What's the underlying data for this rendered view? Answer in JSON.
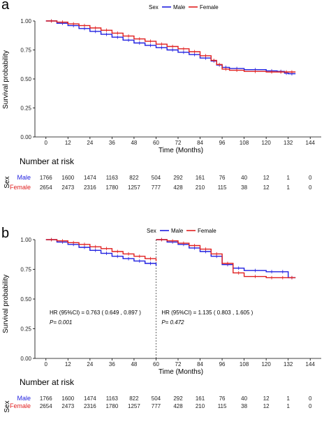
{
  "panels": [
    {
      "label": "a",
      "legend": {
        "title": "Sex",
        "items": [
          "Male",
          "Female"
        ]
      },
      "risk_title": "Number at risk",
      "risk_group_title": "Sex",
      "risk_rows": [
        {
          "name": "Male",
          "counts": [
            "1766",
            "1600",
            "1474",
            "1163",
            "822",
            "504",
            "292",
            "161",
            "76",
            "40",
            "12",
            "1",
            "0"
          ]
        },
        {
          "name": "Female",
          "counts": [
            "2654",
            "2473",
            "2316",
            "1780",
            "1257",
            "777",
            "428",
            "210",
            "115",
            "38",
            "12",
            "1",
            "0"
          ]
        }
      ],
      "annotations": []
    },
    {
      "label": "b",
      "legend": {
        "title": "Sex",
        "items": [
          "Male",
          "Female"
        ]
      },
      "risk_title": "Number at risk",
      "risk_group_title": "Sex",
      "risk_rows": [
        {
          "name": "Male",
          "counts": [
            "1766",
            "1600",
            "1474",
            "1163",
            "822",
            "504",
            "292",
            "161",
            "76",
            "40",
            "12",
            "1",
            "0"
          ]
        },
        {
          "name": "Female",
          "counts": [
            "2654",
            "2473",
            "2316",
            "1780",
            "1257",
            "777",
            "428",
            "210",
            "115",
            "38",
            "12",
            "1",
            "0"
          ]
        }
      ],
      "annotations": [
        {
          "hr": "HR (95%CI) = 0.763 ( 0.649 , 0.897 )",
          "p": "P= 0.001",
          "x": 2,
          "y": 0.37
        },
        {
          "hr": "HR (95%CI) = 1.135 ( 0.803 , 1.605 )",
          "p": "P= 0.472",
          "x": 63,
          "y": 0.37
        }
      ]
    }
  ],
  "colors": {
    "Male": "#1f1fe0",
    "Female": "#e01f1f"
  },
  "chart_data": [
    {
      "type": "line",
      "xlabel": "Time (Months)",
      "ylabel": "Survival probability",
      "xlim": [
        -6,
        150
      ],
      "ylim": [
        0,
        1
      ],
      "xticks": [
        0,
        12,
        24,
        36,
        48,
        60,
        72,
        84,
        96,
        108,
        120,
        132,
        144
      ],
      "yticks": [
        "0.00",
        "0.25",
        "0.50",
        "0.75",
        "1.00"
      ],
      "legend_position": "top",
      "grid": false,
      "series": [
        {
          "name": "Male",
          "x": [
            0,
            6,
            12,
            18,
            24,
            30,
            36,
            42,
            48,
            54,
            60,
            66,
            72,
            78,
            84,
            90,
            93,
            96,
            100,
            108,
            120,
            126,
            130,
            132,
            136
          ],
          "y": [
            1.0,
            0.98,
            0.96,
            0.935,
            0.91,
            0.885,
            0.86,
            0.835,
            0.81,
            0.79,
            0.77,
            0.75,
            0.73,
            0.71,
            0.68,
            0.655,
            0.62,
            0.6,
            0.59,
            0.58,
            0.57,
            0.565,
            0.55,
            0.545,
            0.545
          ]
        },
        {
          "name": "Female",
          "x": [
            0,
            6,
            12,
            18,
            24,
            30,
            36,
            42,
            48,
            54,
            60,
            66,
            72,
            78,
            84,
            90,
            93,
            96,
            100,
            108,
            120,
            126,
            130,
            132,
            136
          ],
          "y": [
            1.0,
            0.99,
            0.975,
            0.96,
            0.94,
            0.92,
            0.895,
            0.87,
            0.845,
            0.825,
            0.8,
            0.78,
            0.76,
            0.735,
            0.7,
            0.66,
            0.625,
            0.585,
            0.575,
            0.565,
            0.56,
            0.56,
            0.56,
            0.56,
            0.56
          ]
        }
      ]
    },
    {
      "type": "line",
      "xlabel": "Time (Months)",
      "ylabel": "Survival probability",
      "xlim": [
        -6,
        150
      ],
      "ylim": [
        0,
        1
      ],
      "xticks": [
        0,
        12,
        24,
        36,
        48,
        60,
        72,
        84,
        96,
        108,
        120,
        132,
        144
      ],
      "yticks": [
        "0.00",
        "0.25",
        "0.50",
        "0.75",
        "1.00"
      ],
      "legend_position": "top",
      "grid": false,
      "vline": 60,
      "series": [
        {
          "name": "Male",
          "segments": [
            {
              "x": [
                0,
                6,
                12,
                18,
                24,
                30,
                36,
                42,
                48,
                54,
                60
              ],
              "y": [
                1.0,
                0.98,
                0.96,
                0.935,
                0.91,
                0.885,
                0.86,
                0.84,
                0.82,
                0.8,
                0.78
              ]
            },
            {
              "x": [
                60,
                66,
                72,
                78,
                84,
                90,
                96,
                102,
                108,
                120,
                126,
                132,
                136
              ],
              "y": [
                1.0,
                0.98,
                0.96,
                0.93,
                0.9,
                0.86,
                0.79,
                0.76,
                0.74,
                0.73,
                0.73,
                0.68,
                0.68
              ]
            }
          ]
        },
        {
          "name": "Female",
          "segments": [
            {
              "x": [
                0,
                6,
                12,
                18,
                24,
                30,
                36,
                42,
                48,
                54,
                60
              ],
              "y": [
                1.0,
                0.99,
                0.975,
                0.96,
                0.94,
                0.925,
                0.9,
                0.88,
                0.86,
                0.84,
                0.82
              ]
            },
            {
              "x": [
                60,
                66,
                72,
                78,
                84,
                90,
                96,
                102,
                108,
                120,
                126,
                132,
                136
              ],
              "y": [
                1.0,
                0.99,
                0.97,
                0.95,
                0.92,
                0.88,
                0.8,
                0.72,
                0.69,
                0.68,
                0.68,
                0.68,
                0.68
              ]
            }
          ]
        }
      ]
    }
  ]
}
